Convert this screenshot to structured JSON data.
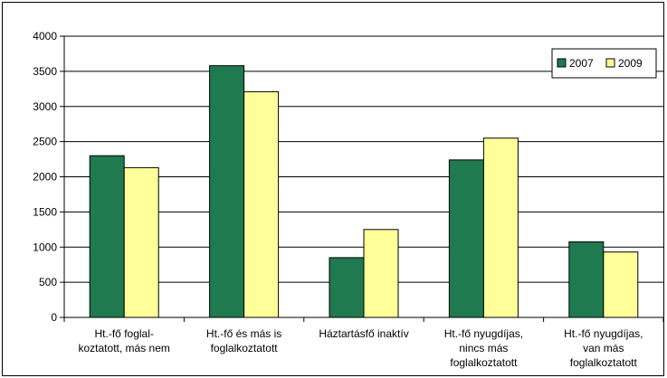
{
  "chart_data": {
    "type": "bar",
    "title": "",
    "xlabel": "",
    "ylabel": "",
    "ylim": [
      0,
      4000
    ],
    "yticks": [
      0,
      500,
      1000,
      1500,
      2000,
      2500,
      3000,
      3500,
      4000
    ],
    "grid": true,
    "legend_position": "top-right",
    "categories": [
      [
        "Ht.-fő foglal-",
        "koztatott, más nem"
      ],
      [
        "Ht.-fő és más is",
        "foglalkoztatott"
      ],
      [
        "Háztartásfő inaktív"
      ],
      [
        "Ht.-fő nyugdíjas,",
        "nincs más",
        "foglalkoztatott"
      ],
      [
        "Ht.-fő nyugdíjas,",
        "van más",
        "foglalkoztatott"
      ]
    ],
    "series": [
      {
        "name": "2007",
        "color": "#1f7a4f",
        "values": [
          2300,
          3580,
          850,
          2240,
          1075
        ]
      },
      {
        "name": "2009",
        "color": "#ffff99",
        "values": [
          2130,
          3210,
          1250,
          2550,
          930
        ]
      }
    ]
  }
}
